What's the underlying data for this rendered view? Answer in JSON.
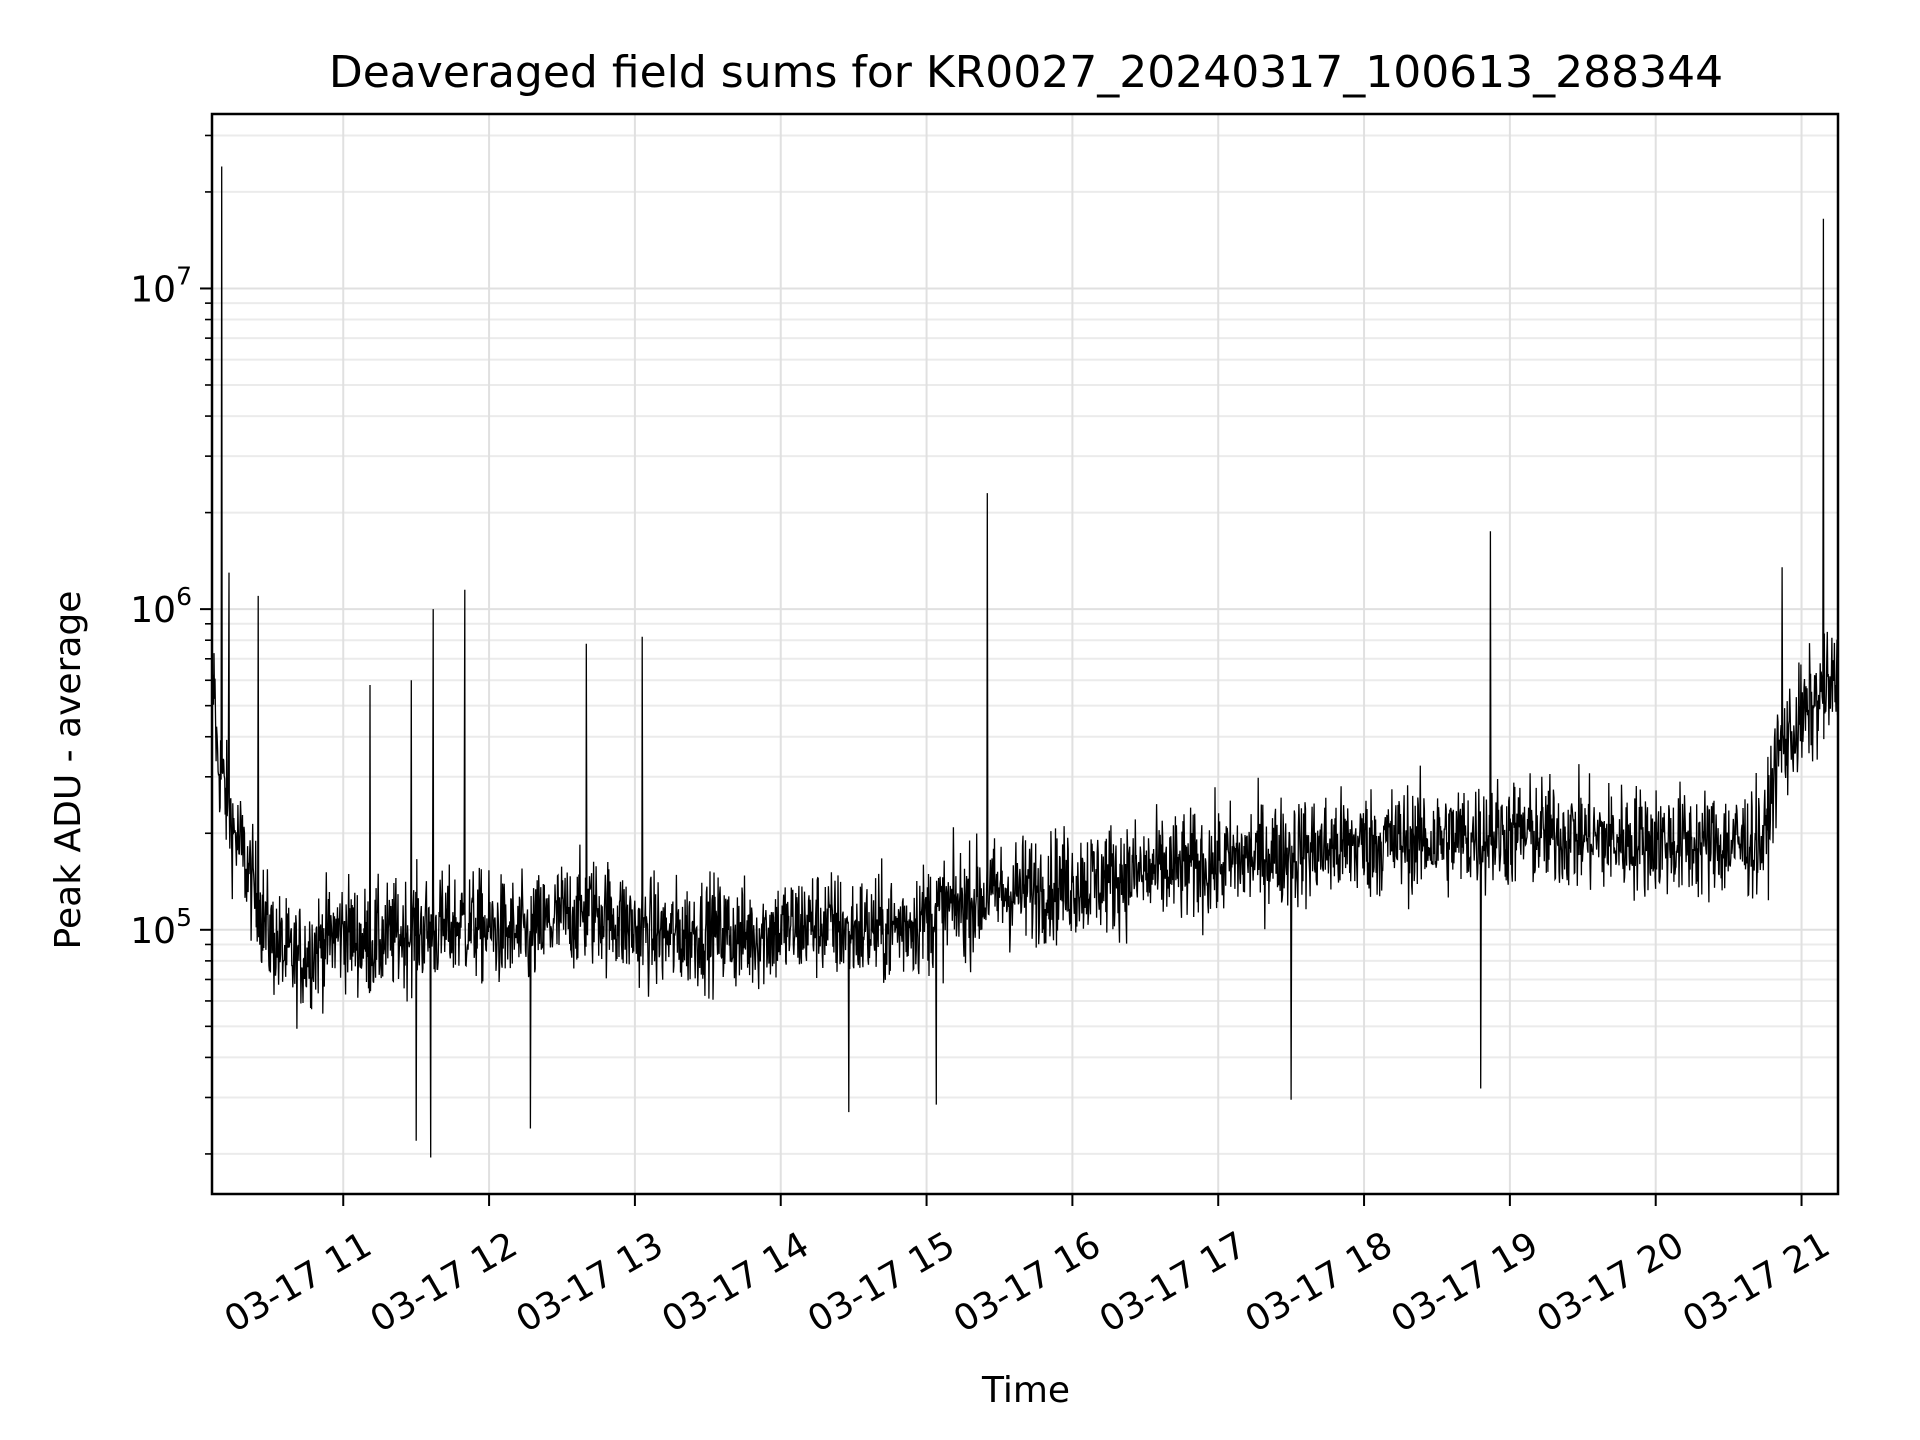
{
  "chart_data": {
    "type": "line",
    "title": "Deaveraged field sums for KR0027_20240317_100613_288344",
    "xlabel": "Time",
    "ylabel": "Peak ADU - average",
    "yscale": "log",
    "xlim": [
      "2024-03-17 10:06",
      "2024-03-17 21:15"
    ],
    "ylim": [
      15000,
      35000000
    ],
    "x_tick_labels": [
      "03-17 11",
      "03-17 12",
      "03-17 13",
      "03-17 14",
      "03-17 15",
      "03-17 16",
      "03-17 17",
      "03-17 18",
      "03-17 19",
      "03-17 20",
      "03-17 21"
    ],
    "y_tick_labels": [
      {
        "base": "10",
        "exp": "5",
        "value": 100000
      },
      {
        "base": "10",
        "exp": "6",
        "value": 1000000
      },
      {
        "base": "10",
        "exp": "7",
        "value": 10000000
      }
    ],
    "grid": true,
    "line_color": "#000000",
    "series": [
      {
        "x": [
          "2024-03-17 10:06",
          "2024-03-17 10:07",
          "2024-03-17 10:08",
          "2024-03-17 10:10",
          "2024-03-17 10:12",
          "2024-03-17 10:15",
          "2024-03-17 10:18",
          "2024-03-17 10:21",
          "2024-03-17 10:25",
          "2024-03-17 10:30",
          "2024-03-17 10:35",
          "2024-03-17 10:40",
          "2024-03-17 10:45",
          "2024-03-17 10:50",
          "2024-03-17 10:55",
          "2024-03-17 11:00",
          "2024-03-17 11:05",
          "2024-03-17 11:10",
          "2024-03-17 11:20",
          "2024-03-17 11:30",
          "2024-03-17 11:40",
          "2024-03-17 11:50",
          "2024-03-17 12:00",
          "2024-03-17 12:15",
          "2024-03-17 12:30",
          "2024-03-17 12:45",
          "2024-03-17 13:00",
          "2024-03-17 13:15",
          "2024-03-17 13:30",
          "2024-03-17 13:45",
          "2024-03-17 14:00",
          "2024-03-17 14:15",
          "2024-03-17 14:30",
          "2024-03-17 14:45",
          "2024-03-17 15:00",
          "2024-03-17 15:15",
          "2024-03-17 15:30",
          "2024-03-17 15:45",
          "2024-03-17 16:00",
          "2024-03-17 16:15",
          "2024-03-17 16:30",
          "2024-03-17 16:45",
          "2024-03-17 17:00",
          "2024-03-17 17:15",
          "2024-03-17 17:30",
          "2024-03-17 17:45",
          "2024-03-17 18:00",
          "2024-03-17 18:15",
          "2024-03-17 18:30",
          "2024-03-17 18:45",
          "2024-03-17 19:00",
          "2024-03-17 19:15",
          "2024-03-17 19:30",
          "2024-03-17 19:45",
          "2024-03-17 20:00",
          "2024-03-17 20:15",
          "2024-03-17 20:30",
          "2024-03-17 20:45",
          "2024-03-17 20:50",
          "2024-03-17 21:00",
          "2024-03-17 21:10",
          "2024-03-17 21:15"
        ],
        "values": [
          450000,
          600000,
          350000,
          300000,
          250000,
          200000,
          180000,
          150000,
          120000,
          95000,
          85000,
          80000,
          85000,
          90000,
          95000,
          100000,
          95000,
          90000,
          95000,
          100000,
          100000,
          105000,
          100000,
          95000,
          110000,
          115000,
          100000,
          95000,
          100000,
          95000,
          100000,
          105000,
          100000,
          100000,
          110000,
          120000,
          130000,
          135000,
          140000,
          145000,
          150000,
          155000,
          160000,
          170000,
          175000,
          180000,
          185000,
          190000,
          190000,
          195000,
          200000,
          200000,
          195000,
          190000,
          190000,
          185000,
          185000,
          190000,
          350000,
          450000,
          550000,
          600000
        ]
      }
    ],
    "spikes": [
      {
        "x": "2024-03-17 10:10",
        "y": 24000000
      },
      {
        "x": "2024-03-17 10:13",
        "y": 1300000
      },
      {
        "x": "2024-03-17 10:25",
        "y": 1100000
      },
      {
        "x": "2024-03-17 11:11",
        "y": 580000
      },
      {
        "x": "2024-03-17 11:28",
        "y": 600000
      },
      {
        "x": "2024-03-17 11:37",
        "y": 1000000
      },
      {
        "x": "2024-03-17 11:50",
        "y": 1150000
      },
      {
        "x": "2024-03-17 12:40",
        "y": 780000
      },
      {
        "x": "2024-03-17 13:03",
        "y": 820000
      },
      {
        "x": "2024-03-17 15:25",
        "y": 2300000
      },
      {
        "x": "2024-03-17 18:52",
        "y": 1750000
      },
      {
        "x": "2024-03-17 20:52",
        "y": 1350000
      },
      {
        "x": "2024-03-17 21:09",
        "y": 16500000
      },
      {
        "x": "2024-03-17 11:30",
        "y": 22000
      },
      {
        "x": "2024-03-17 11:36",
        "y": 19500
      },
      {
        "x": "2024-03-17 12:17",
        "y": 24000
      },
      {
        "x": "2024-03-17 14:28",
        "y": 27000
      },
      {
        "x": "2024-03-17 15:04",
        "y": 28500
      },
      {
        "x": "2024-03-17 17:30",
        "y": 29500
      },
      {
        "x": "2024-03-17 18:48",
        "y": 32000
      }
    ]
  }
}
